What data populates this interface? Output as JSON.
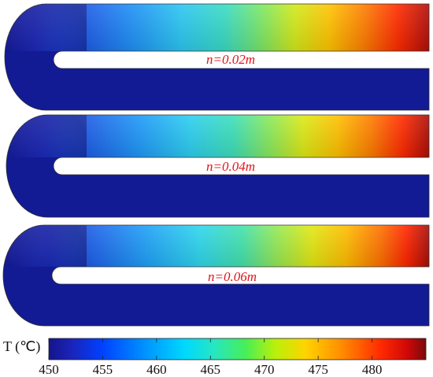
{
  "panels": [
    {
      "label": "n=0.02m"
    },
    {
      "label": "n=0.04m"
    },
    {
      "label": "n=0.06m"
    }
  ],
  "colorbar": {
    "title": "T (℃)",
    "ticks": [
      "450",
      "455",
      "460",
      "465",
      "470",
      "475",
      "480"
    ],
    "min": 450,
    "max": 485,
    "colormap": "jet"
  },
  "colors": {
    "cold": "#0e0e8c",
    "hot": "#7a0a0a",
    "label": "#e0161b"
  }
}
